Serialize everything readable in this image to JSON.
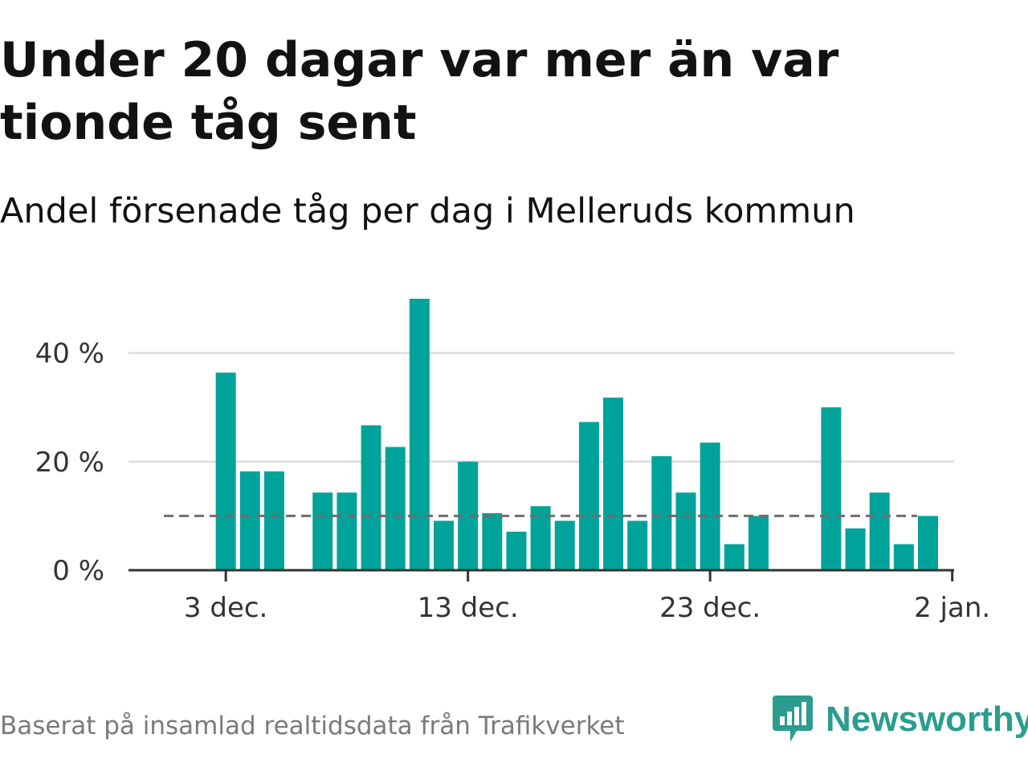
{
  "header": {
    "title": "Under 20 dagar var mer än var tionde tåg sent",
    "subtitle": "Andel försenade tåg per dag i Melleruds kommun"
  },
  "footer": {
    "source": "Baserat på insamlad realtidsdata från Trafikverket",
    "brand": "Newsworthy"
  },
  "colors": {
    "bar": "#00a39a",
    "reference_line": "#6e6e6e",
    "grid": "#e0e0e0",
    "axis": "#333333",
    "brand": "#2a9d8f"
  },
  "chart_data": {
    "type": "bar",
    "x": [
      "2 dec.",
      "3 dec.",
      "4 dec.",
      "5 dec.",
      "6 dec.",
      "7 dec.",
      "8 dec.",
      "9 dec.",
      "10 dec.",
      "11 dec.",
      "12 dec.",
      "13 dec.",
      "14 dec.",
      "15 dec.",
      "16 dec.",
      "17 dec.",
      "18 dec.",
      "19 dec.",
      "20 dec.",
      "21 dec.",
      "22 dec.",
      "23 dec.",
      "24 dec.",
      "25 dec.",
      "26 dec.",
      "27 dec.",
      "28 dec.",
      "29 dec.",
      "30 dec.",
      "31 dec.",
      "1 jan."
    ],
    "values": [
      null,
      36.4,
      18.2,
      18.2,
      null,
      14.3,
      14.3,
      26.7,
      22.7,
      50.0,
      9.1,
      20.0,
      10.5,
      7.1,
      11.8,
      9.1,
      27.3,
      31.8,
      9.1,
      21.0,
      14.3,
      23.5,
      4.8,
      10.0,
      null,
      null,
      30.0,
      7.7,
      14.3,
      4.8,
      10.0
    ],
    "reference_line": 10,
    "x_ticks": [
      "3 dec.",
      "13 dec.",
      "23 dec.",
      "2 jan."
    ],
    "y_ticks": [
      "0 %",
      "20 %",
      "40 %"
    ],
    "ylim": [
      0,
      50
    ],
    "grid": true,
    "xlabel": "",
    "ylabel": ""
  }
}
